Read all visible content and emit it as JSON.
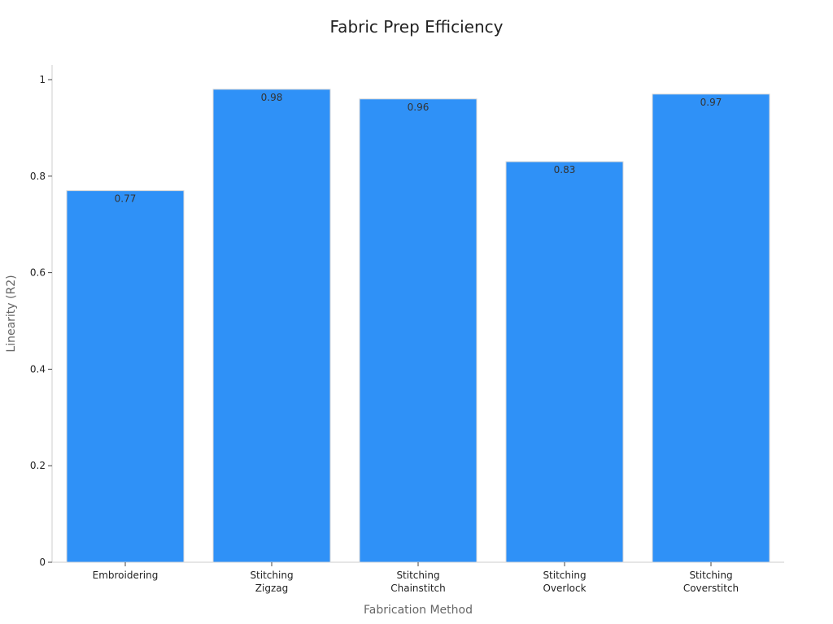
{
  "chart_data": {
    "type": "bar",
    "title": "Fabric Prep Efficiency",
    "xlabel": "Fabrication Method",
    "ylabel": "Linearity (R2)",
    "categories": [
      [
        "Embroidering"
      ],
      [
        "Stitching",
        "Zigzag"
      ],
      [
        "Stitching",
        "Chainstitch"
      ],
      [
        "Stitching",
        "Overlock"
      ],
      [
        "Stitching",
        "Coverstitch"
      ]
    ],
    "values": [
      0.77,
      0.98,
      0.96,
      0.83,
      0.97
    ],
    "data_labels": [
      "0.77",
      "0.98",
      "0.96",
      "0.83",
      "0.97"
    ],
    "ylim": [
      0,
      1
    ],
    "yticks": [
      0,
      0.2,
      0.4,
      0.6,
      0.8,
      1
    ],
    "ytick_labels": [
      "0",
      "0.2",
      "0.4",
      "0.6",
      "0.8",
      "1"
    ],
    "grid": false,
    "legend": "none",
    "bar_color": "#2f91f7"
  }
}
